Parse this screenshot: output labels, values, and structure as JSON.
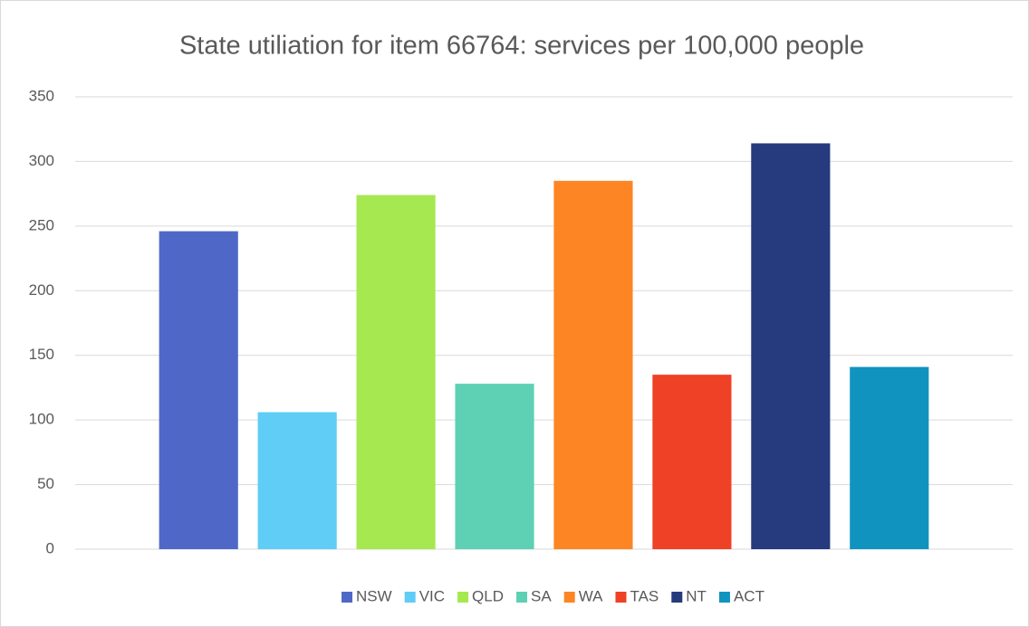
{
  "chart_data": {
    "type": "bar",
    "title": "State utiliation for item 66764: services per 100,000 people",
    "categories": [
      null
    ],
    "series": [
      {
        "name": "NSW",
        "color": "#4f68c8",
        "values": [
          246
        ]
      },
      {
        "name": "VIC",
        "color": "#5fcdf5",
        "values": [
          106
        ]
      },
      {
        "name": "QLD",
        "color": "#a6e84f",
        "values": [
          274
        ]
      },
      {
        "name": "SA",
        "color": "#5ed0b3",
        "values": [
          128
        ]
      },
      {
        "name": "WA",
        "color": "#fd8524",
        "values": [
          285
        ]
      },
      {
        "name": "TAS",
        "color": "#ef4125",
        "values": [
          135
        ]
      },
      {
        "name": "NT",
        "color": "#263a7e",
        "values": [
          314
        ]
      },
      {
        "name": "ACT",
        "color": "#1193c0",
        "values": [
          141
        ]
      }
    ],
    "ylim": [
      0,
      350
    ],
    "yticks": [
      0,
      50,
      100,
      150,
      200,
      250,
      300,
      350
    ],
    "grid": true,
    "legend": "bottom"
  }
}
